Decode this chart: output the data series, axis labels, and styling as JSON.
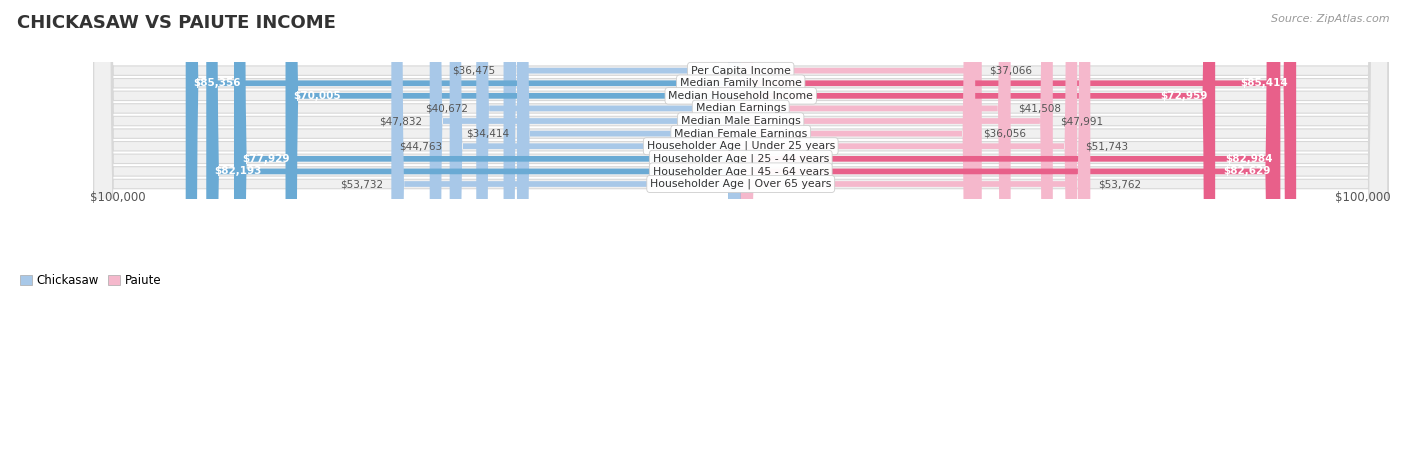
{
  "title": "CHICKASAW VS PAIUTE INCOME",
  "source": "Source: ZipAtlas.com",
  "categories": [
    "Per Capita Income",
    "Median Family Income",
    "Median Household Income",
    "Median Earnings",
    "Median Male Earnings",
    "Median Female Earnings",
    "Householder Age | Under 25 years",
    "Householder Age | 25 - 44 years",
    "Householder Age | 45 - 64 years",
    "Householder Age | Over 65 years"
  ],
  "chickasaw_values": [
    36475,
    85356,
    70005,
    40672,
    47832,
    34414,
    44763,
    77929,
    82193,
    53732
  ],
  "paiute_values": [
    37066,
    85414,
    72959,
    41508,
    47991,
    36056,
    51743,
    82984,
    82629,
    53762
  ],
  "chickasaw_labels": [
    "$36,475",
    "$85,356",
    "$70,005",
    "$40,672",
    "$47,832",
    "$34,414",
    "$44,763",
    "$77,929",
    "$82,193",
    "$53,732"
  ],
  "paiute_labels": [
    "$37,066",
    "$85,414",
    "$72,959",
    "$41,508",
    "$47,991",
    "$36,056",
    "$51,743",
    "$82,984",
    "$82,629",
    "$53,762"
  ],
  "chickasaw_color_light": "#a8c8e8",
  "chickasaw_color_dark": "#6aaad4",
  "paiute_color_light": "#f5b8cc",
  "paiute_color_dark": "#e8608a",
  "max_value": 100000,
  "row_bg_color": "#f0f0f0",
  "row_edge_color": "#d8d8d8",
  "legend_chickasaw": "Chickasaw",
  "legend_paiute": "Paiute",
  "xlabel_left": "$100,000",
  "xlabel_right": "$100,000",
  "threshold_dark": 60000
}
